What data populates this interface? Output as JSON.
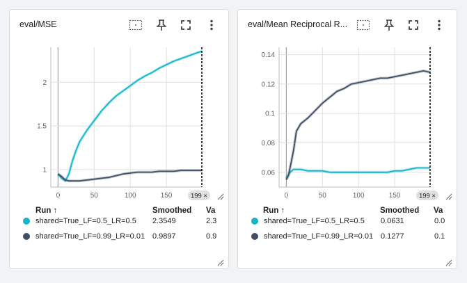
{
  "cards": [
    {
      "title": "eval/MSE",
      "legend": {
        "col_run": "Run ↑",
        "col_smoothed": "Smoothed",
        "col_value": "Va",
        "rows": [
          {
            "name": "shared=True_LF=0.5_LR=0.5",
            "smoothed": "2.3549",
            "value": "2.3",
            "color": "#12b5cb"
          },
          {
            "name": "shared=True_LF=0.99_LR=0.01",
            "smoothed": "0.9897",
            "value": "0.9",
            "color": "#425066"
          }
        ]
      },
      "step_chip": "199 ×",
      "chart_data": {
        "type": "line",
        "xlim": [
          -10,
          200
        ],
        "ylim": [
          0.8,
          2.4
        ],
        "x_ticks": [
          0,
          50,
          100,
          150
        ],
        "y_ticks": [
          1,
          1.5,
          2
        ],
        "x_tick_labels": [
          "0",
          "50",
          "100",
          "150"
        ],
        "y_tick_labels": [
          "1",
          "1.5",
          "2"
        ],
        "cursor_x": 199,
        "series": [
          {
            "color": "#12b5cb",
            "x": [
              0,
              5,
              10,
              15,
              20,
              25,
              30,
              40,
              50,
              60,
              70,
              80,
              90,
              100,
              110,
              120,
              130,
              140,
              150,
              160,
              170,
              180,
              190,
              199
            ],
            "y": [
              0.95,
              0.9,
              0.87,
              0.95,
              1.1,
              1.22,
              1.32,
              1.45,
              1.56,
              1.67,
              1.76,
              1.84,
              1.9,
              1.96,
              2.02,
              2.07,
              2.11,
              2.16,
              2.2,
              2.24,
              2.27,
              2.3,
              2.33,
              2.355
            ]
          },
          {
            "color": "#425066",
            "x": [
              0,
              5,
              10,
              15,
              20,
              30,
              40,
              50,
              60,
              70,
              80,
              90,
              100,
              110,
              120,
              130,
              140,
              150,
              160,
              170,
              180,
              190,
              199
            ],
            "y": [
              0.95,
              0.92,
              0.88,
              0.87,
              0.87,
              0.87,
              0.88,
              0.89,
              0.9,
              0.91,
              0.93,
              0.95,
              0.96,
              0.97,
              0.97,
              0.97,
              0.98,
              0.98,
              0.98,
              0.99,
              0.99,
              0.99,
              0.99
            ]
          }
        ]
      }
    },
    {
      "title": "eval/Mean Reciprocal R...",
      "legend": {
        "col_run": "Run ↑",
        "col_smoothed": "Smoothed",
        "col_value": "Va",
        "rows": [
          {
            "name": "shared=True_LF=0.5_LR=0.5",
            "smoothed": "0.0631",
            "value": "0.0",
            "color": "#12b5cb"
          },
          {
            "name": "shared=True_LF=0.99_LR=0.01",
            "smoothed": "0.1277",
            "value": "0.1",
            "color": "#425066"
          }
        ]
      },
      "step_chip": "199 ×",
      "chart_data": {
        "type": "line",
        "xlim": [
          -10,
          200
        ],
        "ylim": [
          0.05,
          0.145
        ],
        "x_ticks": [
          0,
          50,
          100,
          150
        ],
        "y_ticks": [
          0.06,
          0.08,
          0.1,
          0.12,
          0.14
        ],
        "x_tick_labels": [
          "0",
          "50",
          "100",
          "150"
        ],
        "y_tick_labels": [
          "0.06",
          "0.08",
          "0.1",
          "0.12",
          "0.14"
        ],
        "cursor_x": 199,
        "series": [
          {
            "color": "#12b5cb",
            "x": [
              0,
              5,
              10,
              15,
              20,
              30,
              40,
              50,
              60,
              70,
              80,
              90,
              100,
              110,
              120,
              130,
              140,
              150,
              160,
              170,
              180,
              190,
              199
            ],
            "y": [
              0.056,
              0.06,
              0.062,
              0.062,
              0.062,
              0.061,
              0.061,
              0.061,
              0.06,
              0.06,
              0.06,
              0.06,
              0.06,
              0.06,
              0.06,
              0.06,
              0.06,
              0.061,
              0.061,
              0.062,
              0.063,
              0.063,
              0.063
            ]
          },
          {
            "color": "#425066",
            "x": [
              0,
              3,
              6,
              10,
              14,
              20,
              30,
              40,
              50,
              60,
              70,
              80,
              90,
              100,
              110,
              120,
              130,
              140,
              150,
              160,
              170,
              180,
              190,
              199
            ],
            "y": [
              0.055,
              0.058,
              0.065,
              0.075,
              0.088,
              0.093,
              0.097,
              0.102,
              0.107,
              0.111,
              0.115,
              0.117,
              0.12,
              0.121,
              0.122,
              0.123,
              0.124,
              0.124,
              0.125,
              0.126,
              0.127,
              0.128,
              0.129,
              0.128
            ]
          }
        ]
      }
    }
  ]
}
